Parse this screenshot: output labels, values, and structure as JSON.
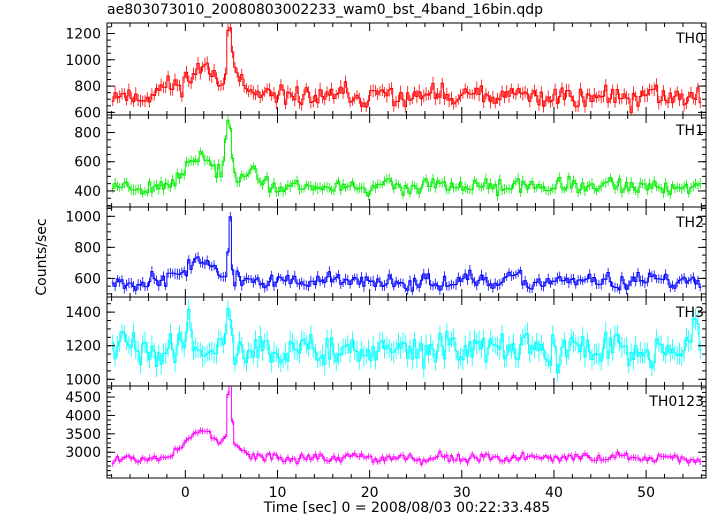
{
  "chart_data": {
    "type": "line",
    "title": "ae803073010_20080803002233_wam0_bst_4band_16bin.qdp",
    "xlabel": "Time [sec] 0 = 2008/08/03 00:22:33.485",
    "ylabel": "Counts/sec",
    "xlim": [
      -8.5,
      56.5
    ],
    "x_ticks": [
      0,
      10,
      20,
      30,
      40,
      50
    ],
    "x_tick_labels": [
      "0",
      "10",
      "20",
      "30",
      "40",
      "50"
    ],
    "bin_width": 0.25,
    "grid": false,
    "panels": [
      {
        "name": "TH0",
        "color": "#ff0000",
        "ylim": [
          580,
          1280
        ],
        "y_ticks": [
          600,
          800,
          1000,
          1200
        ],
        "y_tick_labels": [
          "600",
          "800",
          "1000",
          "1200"
        ],
        "baseline": 720,
        "noise": 60,
        "err": 45,
        "seed": 11,
        "bumps": [
          {
            "t": 0,
            "a": 80,
            "w": 2.2
          },
          {
            "t": 2.5,
            "a": 160,
            "w": 1.8
          },
          {
            "t": 4.8,
            "a": 480,
            "w": 0.25
          },
          {
            "t": 5.6,
            "a": 100,
            "w": 0.6
          }
        ]
      },
      {
        "name": "TH1",
        "color": "#00ee00",
        "ylim": [
          290,
          920
        ],
        "y_ticks": [
          400,
          600,
          800
        ],
        "y_tick_labels": [
          "400",
          "600",
          "800"
        ],
        "baseline": 430,
        "noise": 38,
        "err": 32,
        "seed": 23,
        "bumps": [
          {
            "t": 1.5,
            "a": 210,
            "w": 1.4
          },
          {
            "t": 4.7,
            "a": 430,
            "w": 0.35
          },
          {
            "t": 6.5,
            "a": 80,
            "w": 1.5
          }
        ]
      },
      {
        "name": "TH2",
        "color": "#0000ff",
        "ylim": [
          480,
          1060
        ],
        "y_ticks": [
          600,
          800,
          1000
        ],
        "y_tick_labels": [
          "600",
          "800",
          "1000"
        ],
        "baseline": 580,
        "noise": 38,
        "err": 30,
        "seed": 37,
        "bumps": [
          {
            "t": 1.5,
            "a": 130,
            "w": 1.8
          },
          {
            "t": 4.8,
            "a": 470,
            "w": 0.12
          }
        ]
      },
      {
        "name": "TH3",
        "color": "#00ffff",
        "ylim": [
          960,
          1490
        ],
        "y_ticks": [
          1000,
          1200,
          1400
        ],
        "y_tick_labels": [
          "1000",
          "1200",
          "1400"
        ],
        "baseline": 1175,
        "noise": 70,
        "err": 55,
        "seed": 41,
        "bumps": [
          {
            "t": 0.3,
            "a": 230,
            "w": 0.35
          },
          {
            "t": 4.7,
            "a": 220,
            "w": 0.3
          },
          {
            "t": 55.2,
            "a": 160,
            "w": 0.5
          }
        ]
      },
      {
        "name": "TH0123",
        "color": "#ff00ff",
        "ylim": [
          2300,
          4800
        ],
        "y_ticks": [
          3000,
          3500,
          4000,
          4500
        ],
        "y_tick_labels": [
          "3000",
          "3500",
          "4000",
          "4500"
        ],
        "baseline": 2850,
        "noise": 95,
        "err": 80,
        "seed": 53,
        "bumps": [
          {
            "t": 1.8,
            "a": 750,
            "w": 1.6
          },
          {
            "t": 4.8,
            "a": 1750,
            "w": 0.25
          },
          {
            "t": 5.8,
            "a": 250,
            "w": 0.8
          }
        ]
      }
    ]
  }
}
